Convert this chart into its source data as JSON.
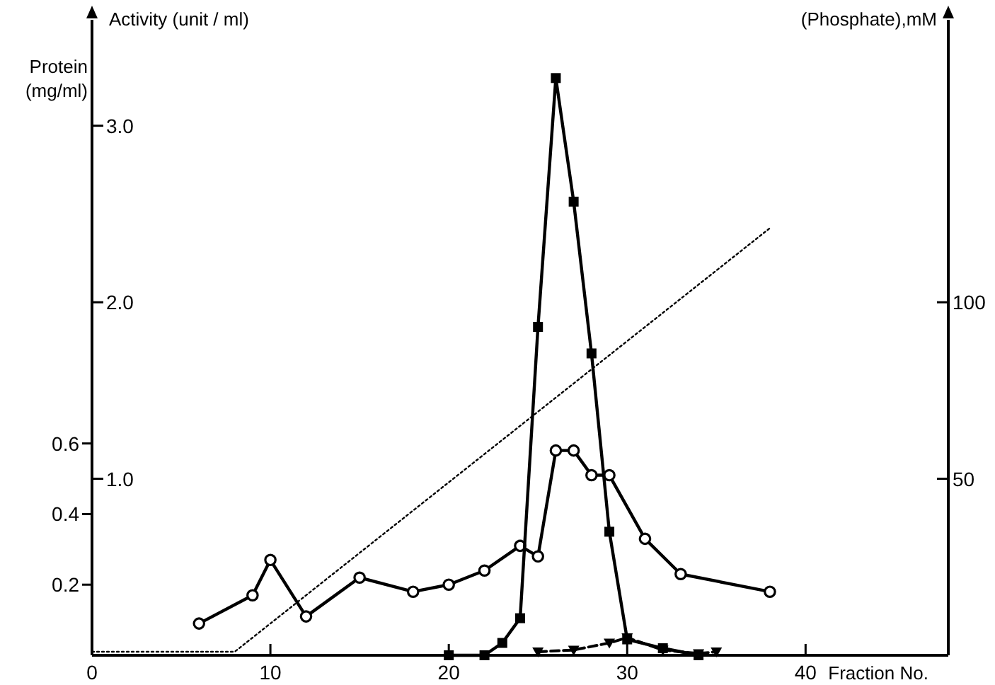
{
  "chart_data": {
    "type": "line",
    "xlabel": "Fraction No.",
    "ylabel": "Activity (unit / ml)",
    "y2label": "(Phosphate),mM",
    "y3label": "Protein (mg/ml)",
    "xlim": [
      0,
      48
    ],
    "xticks": [
      0,
      10,
      20,
      30,
      40
    ],
    "ylim": [
      0,
      3.6
    ],
    "yticks": [
      {
        "value": 1,
        "label": "1.0"
      },
      {
        "value": 2,
        "label": "2.0"
      },
      {
        "value": 3,
        "label": "3.0"
      }
    ],
    "y2lim": [
      0,
      180
    ],
    "y2ticks": [
      50,
      100
    ],
    "y3lim": [
      0,
      1.8
    ],
    "y3ticks": [
      0.2,
      0.4,
      0.6
    ],
    "series": [
      {
        "color": "#000000",
        "axis": "y3",
        "marker": "circle",
        "line_style": "solid",
        "x": [
          6,
          9,
          10,
          12,
          15,
          18,
          20,
          22,
          24,
          25,
          26,
          27,
          28,
          29,
          31,
          33,
          38
        ],
        "values": [
          0.09,
          0.17,
          0.27,
          0.11,
          0.22,
          0.18,
          0.2,
          0.24,
          0.31,
          0.28,
          0.58,
          0.58,
          0.51,
          0.51,
          0.33,
          0.23,
          0.18
        ]
      },
      {
        "color": "#000000",
        "axis": "y",
        "marker": "square",
        "line_style": "solid",
        "x": [
          20,
          22,
          23,
          24,
          25,
          26,
          27,
          28,
          29,
          30,
          32,
          34
        ],
        "values": [
          0,
          0,
          0.07,
          0.21,
          1.86,
          3.27,
          2.57,
          1.71,
          0.7,
          0.09,
          0.04,
          0
        ]
      },
      {
        "color": "#000000",
        "axis": "y",
        "marker": "triangle",
        "line_style": "dashed",
        "x": [
          25,
          27,
          29,
          30,
          32,
          34,
          35
        ],
        "values": [
          0.02,
          0.03,
          0.07,
          0.1,
          0.03,
          0.01,
          0.02
        ]
      },
      {
        "color": "#000000",
        "axis": "y2",
        "marker": "none",
        "line_style": "dotted",
        "x": [
          0,
          8,
          38
        ],
        "values": [
          1,
          1,
          121
        ]
      }
    ]
  }
}
